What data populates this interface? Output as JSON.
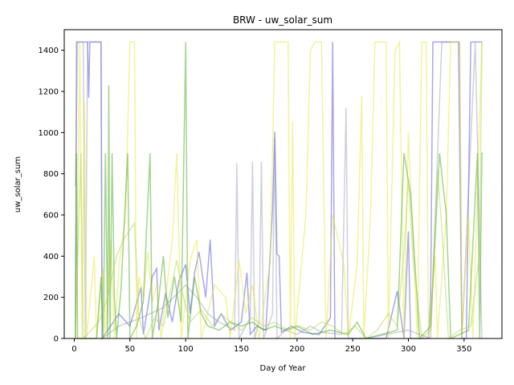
{
  "chart_data": {
    "type": "line",
    "title": "BRW - uw_solar_sum",
    "xlabel": "Day of Year",
    "ylabel": "uw_solar_sum",
    "xlim": [
      -9,
      384
    ],
    "ylim": [
      0,
      1500
    ],
    "xticks": [
      0,
      50,
      100,
      150,
      200,
      250,
      300,
      350
    ],
    "yticks": [
      0,
      200,
      400,
      600,
      800,
      1000,
      1200,
      1400
    ],
    "grid": false,
    "legend": "none",
    "series": [
      {
        "color": "#3b3bd9",
        "opacity": 0.45,
        "points": [
          [
            1,
            0
          ],
          [
            2,
            1440
          ],
          [
            5,
            1440
          ],
          [
            12,
            1440
          ],
          [
            13,
            1170
          ],
          [
            14,
            1440
          ],
          [
            24,
            1440
          ],
          [
            25,
            0
          ],
          [
            30,
            40
          ],
          [
            40,
            120
          ],
          [
            50,
            60
          ],
          [
            60,
            250
          ],
          [
            62,
            20
          ],
          [
            66,
            150
          ],
          [
            70,
            300
          ],
          [
            74,
            340
          ],
          [
            76,
            40
          ],
          [
            82,
            220
          ],
          [
            88,
            80
          ],
          [
            94,
            280
          ],
          [
            100,
            360
          ],
          [
            104,
            120
          ],
          [
            108,
            320
          ],
          [
            112,
            420
          ],
          [
            118,
            200
          ],
          [
            122,
            480
          ],
          [
            126,
            60
          ],
          [
            132,
            120
          ],
          [
            140,
            40
          ],
          [
            150,
            80
          ],
          [
            155,
            320
          ],
          [
            158,
            20
          ],
          [
            164,
            60
          ],
          [
            172,
            40
          ],
          [
            178,
            620
          ],
          [
            180,
            1005
          ],
          [
            182,
            410
          ],
          [
            184,
            400
          ],
          [
            186,
            30
          ],
          [
            195,
            60
          ],
          [
            205,
            30
          ],
          [
            220,
            20
          ],
          [
            230,
            100
          ],
          [
            232,
            1440
          ],
          [
            234,
            0
          ],
          [
            250,
            0
          ],
          [
            270,
            0
          ],
          [
            280,
            0
          ],
          [
            290,
            230
          ],
          [
            296,
            0
          ],
          [
            300,
            520
          ],
          [
            302,
            0
          ],
          [
            318,
            0
          ],
          [
            320,
            200
          ],
          [
            322,
            1440
          ],
          [
            345,
            1440
          ],
          [
            348,
            0
          ],
          [
            352,
            0
          ],
          [
            356,
            1440
          ],
          [
            362,
            1440
          ],
          [
            366,
            1440
          ]
        ]
      },
      {
        "color": "#8a8aa8",
        "opacity": 0.4,
        "points": [
          [
            1,
            740
          ],
          [
            3,
            1440
          ],
          [
            8,
            1440
          ],
          [
            10,
            0
          ],
          [
            12,
            1440
          ],
          [
            24,
            1440
          ],
          [
            25,
            0
          ],
          [
            40,
            60
          ],
          [
            60,
            100
          ],
          [
            80,
            150
          ],
          [
            100,
            260
          ],
          [
            110,
            200
          ],
          [
            120,
            120
          ],
          [
            130,
            80
          ],
          [
            144,
            40
          ],
          [
            146,
            850
          ],
          [
            148,
            0
          ],
          [
            158,
            100
          ],
          [
            160,
            860
          ],
          [
            162,
            0
          ],
          [
            166,
            80
          ],
          [
            168,
            860
          ],
          [
            170,
            0
          ],
          [
            178,
            120
          ],
          [
            180,
            975
          ],
          [
            182,
            0
          ],
          [
            190,
            40
          ],
          [
            200,
            20
          ],
          [
            212,
            60
          ],
          [
            222,
            30
          ],
          [
            240,
            20
          ],
          [
            244,
            1120
          ],
          [
            246,
            0
          ],
          [
            262,
            0
          ],
          [
            300,
            40
          ],
          [
            320,
            0
          ],
          [
            330,
            1440
          ],
          [
            346,
            1440
          ],
          [
            348,
            0
          ],
          [
            360,
            1440
          ],
          [
            366,
            0
          ]
        ]
      },
      {
        "color": "#e8e83a",
        "opacity": 0.5,
        "points": [
          [
            1,
            0
          ],
          [
            3,
            540
          ],
          [
            5,
            1440
          ],
          [
            7,
            0
          ],
          [
            9,
            1150
          ],
          [
            11,
            0
          ],
          [
            18,
            400
          ],
          [
            20,
            0
          ],
          [
            26,
            340
          ],
          [
            28,
            0
          ],
          [
            33,
            480
          ],
          [
            36,
            0
          ],
          [
            40,
            340
          ],
          [
            46,
            600
          ],
          [
            50,
            1440
          ],
          [
            54,
            1440
          ],
          [
            56,
            0
          ],
          [
            58,
            300
          ],
          [
            62,
            200
          ],
          [
            66,
            420
          ],
          [
            70,
            180
          ],
          [
            74,
            260
          ],
          [
            78,
            0
          ],
          [
            88,
            480
          ],
          [
            92,
            900
          ],
          [
            96,
            0
          ],
          [
            104,
            380
          ],
          [
            110,
            480
          ],
          [
            114,
            0
          ],
          [
            126,
            260
          ],
          [
            136,
            200
          ],
          [
            140,
            0
          ],
          [
            148,
            380
          ],
          [
            154,
            120
          ],
          [
            160,
            260
          ],
          [
            166,
            0
          ],
          [
            176,
            380
          ],
          [
            180,
            1440
          ],
          [
            192,
            1440
          ],
          [
            194,
            0
          ],
          [
            196,
            1055
          ],
          [
            198,
            0
          ],
          [
            208,
            600
          ],
          [
            212,
            1400
          ],
          [
            216,
            1440
          ],
          [
            222,
            1440
          ],
          [
            226,
            0
          ],
          [
            232,
            600
          ],
          [
            242,
            360
          ],
          [
            246,
            0
          ],
          [
            254,
            360
          ],
          [
            258,
            1180
          ],
          [
            260,
            0
          ],
          [
            266,
            600
          ],
          [
            270,
            1440
          ],
          [
            280,
            1440
          ],
          [
            282,
            0
          ],
          [
            288,
            1400
          ],
          [
            292,
            1440
          ],
          [
            296,
            0
          ],
          [
            300,
            1000
          ],
          [
            304,
            500
          ],
          [
            308,
            0
          ],
          [
            312,
            1440
          ],
          [
            316,
            1440
          ],
          [
            318,
            0
          ],
          [
            324,
            400
          ],
          [
            326,
            0
          ],
          [
            334,
            600
          ],
          [
            338,
            1440
          ],
          [
            346,
            1440
          ],
          [
            348,
            0
          ],
          [
            354,
            600
          ],
          [
            358,
            0
          ],
          [
            366,
            1440
          ]
        ]
      },
      {
        "color": "#4aaa20",
        "opacity": 0.5,
        "points": [
          [
            1,
            0
          ],
          [
            2,
            900
          ],
          [
            3,
            0
          ],
          [
            20,
            0
          ],
          [
            24,
            300
          ],
          [
            26,
            0
          ],
          [
            28,
            900
          ],
          [
            30,
            0
          ],
          [
            31,
            1230
          ],
          [
            32,
            0
          ],
          [
            34,
            900
          ],
          [
            36,
            200
          ],
          [
            38,
            0
          ],
          [
            42,
            240
          ],
          [
            48,
            900
          ],
          [
            50,
            0
          ],
          [
            56,
            60
          ],
          [
            62,
            180
          ],
          [
            68,
            900
          ],
          [
            70,
            0
          ],
          [
            76,
            200
          ],
          [
            80,
            400
          ],
          [
            84,
            100
          ],
          [
            90,
            300
          ],
          [
            96,
            80
          ],
          [
            100,
            1440
          ],
          [
            102,
            0
          ],
          [
            108,
            300
          ],
          [
            114,
            120
          ],
          [
            120,
            60
          ],
          [
            130,
            40
          ],
          [
            140,
            80
          ],
          [
            150,
            60
          ],
          [
            160,
            80
          ],
          [
            170,
            40
          ],
          [
            180,
            60
          ],
          [
            190,
            40
          ],
          [
            200,
            60
          ],
          [
            214,
            20
          ],
          [
            230,
            40
          ],
          [
            246,
            20
          ],
          [
            254,
            80
          ],
          [
            262,
            0
          ],
          [
            276,
            20
          ],
          [
            290,
            40
          ],
          [
            296,
            900
          ],
          [
            302,
            700
          ],
          [
            310,
            0
          ],
          [
            320,
            60
          ],
          [
            328,
            900
          ],
          [
            334,
            600
          ],
          [
            338,
            0
          ],
          [
            354,
            40
          ],
          [
            362,
            900
          ],
          [
            364,
            0
          ],
          [
            366,
            900
          ],
          [
            367,
            900
          ]
        ]
      },
      {
        "color": "#a8d448",
        "opacity": 0.45,
        "points": [
          [
            1,
            0
          ],
          [
            6,
            900
          ],
          [
            8,
            0
          ],
          [
            22,
            80
          ],
          [
            30,
            200
          ],
          [
            38,
            400
          ],
          [
            44,
            480
          ],
          [
            54,
            560
          ],
          [
            58,
            100
          ],
          [
            64,
            0
          ],
          [
            72,
            100
          ],
          [
            80,
            60
          ],
          [
            92,
            380
          ],
          [
            98,
            200
          ],
          [
            104,
            80
          ],
          [
            114,
            140
          ],
          [
            124,
            60
          ],
          [
            132,
            120
          ],
          [
            140,
            80
          ],
          [
            150,
            40
          ],
          [
            160,
            100
          ],
          [
            170,
            60
          ],
          [
            180,
            80
          ],
          [
            192,
            40
          ],
          [
            202,
            60
          ],
          [
            212,
            40
          ],
          [
            222,
            80
          ],
          [
            232,
            60
          ],
          [
            242,
            20
          ],
          [
            252,
            60
          ],
          [
            262,
            0
          ],
          [
            272,
            40
          ],
          [
            282,
            120
          ],
          [
            290,
            60
          ],
          [
            296,
            420
          ],
          [
            300,
            780
          ],
          [
            304,
            400
          ],
          [
            312,
            0
          ],
          [
            320,
            40
          ],
          [
            326,
            820
          ],
          [
            330,
            540
          ],
          [
            336,
            0
          ],
          [
            346,
            40
          ],
          [
            356,
            60
          ],
          [
            364,
            420
          ],
          [
            366,
            1440
          ]
        ]
      }
    ]
  }
}
